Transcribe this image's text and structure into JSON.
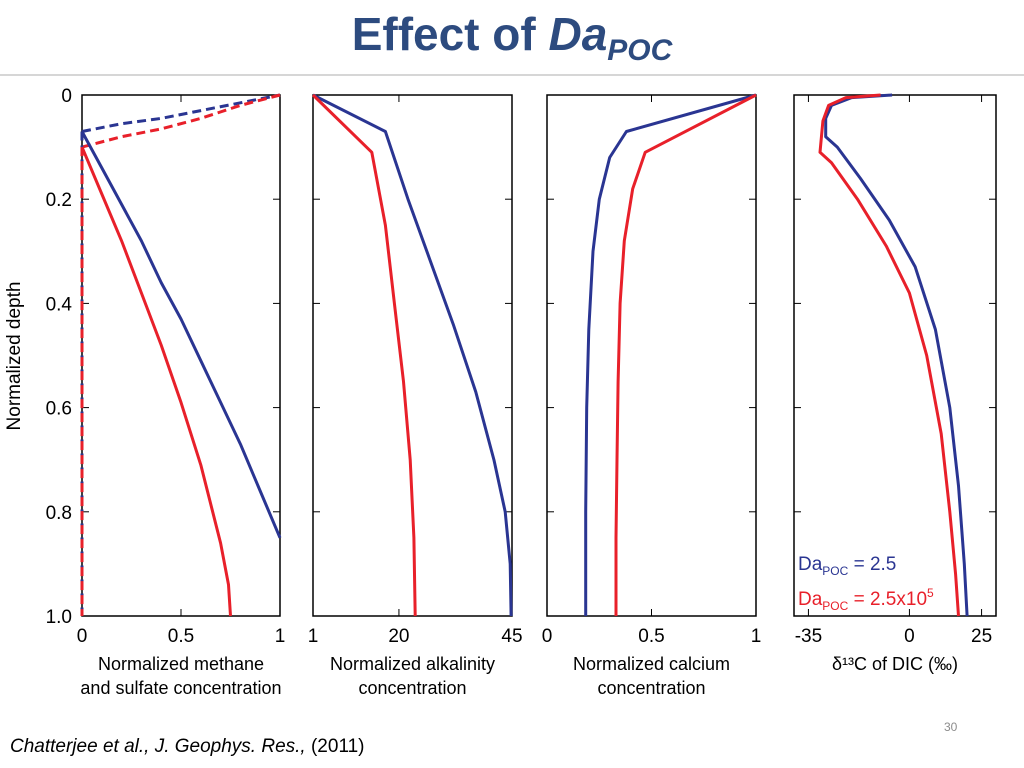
{
  "title": {
    "main": "Effect of ",
    "symbol": "Da",
    "subscript": "POC"
  },
  "colors": {
    "blue": "#2a3592",
    "red": "#e8202a",
    "title": "#2d4b7f"
  },
  "ylabel": "Normalized depth",
  "legend": [
    {
      "prefix": "Da",
      "sub": "POC",
      "text": " = 2.5",
      "sup": "",
      "color": "#2a3592"
    },
    {
      "prefix": "Da",
      "sub": "POC",
      "text": " = 2.5x10",
      "sup": "5",
      "color": "#e8202a"
    }
  ],
  "chart_data": [
    {
      "type": "line",
      "xlabel": [
        "Normalized methane",
        "and sulfate concentration"
      ],
      "ylabel": "Normalized depth",
      "xlim": [
        0,
        1
      ],
      "ylim": [
        1.0,
        0
      ],
      "xticks": [
        0,
        0.5,
        1
      ],
      "xticklabels": [
        "0",
        "0.5",
        "1"
      ],
      "yticks": [
        0,
        0.2,
        0.4,
        0.6,
        0.8,
        1.0
      ],
      "yticklabels": [
        "0",
        "0.2",
        "0.4",
        "0.6",
        "0.8",
        "1.0"
      ],
      "series": [
        {
          "color": "blue",
          "dash": true,
          "points": [
            [
              0.0,
              0.07
            ],
            [
              0.2,
              0.055
            ],
            [
              0.4,
              0.045
            ],
            [
              0.6,
              0.03
            ],
            [
              0.8,
              0.015
            ],
            [
              1.0,
              0.0
            ]
          ]
        },
        {
          "color": "red",
          "dash": true,
          "points": [
            [
              0.0,
              0.1
            ],
            [
              0.2,
              0.08
            ],
            [
              0.4,
              0.065
            ],
            [
              0.6,
              0.045
            ],
            [
              0.8,
              0.02
            ],
            [
              1.0,
              0.0
            ]
          ]
        },
        {
          "color": "blue",
          "dash": true,
          "points": [
            [
              0.0,
              0.07
            ],
            [
              0.0,
              1.0
            ]
          ]
        },
        {
          "color": "red",
          "dash": true,
          "points": [
            [
              0.0,
              0.1
            ],
            [
              0.0,
              1.0
            ]
          ]
        },
        {
          "color": "blue",
          "dash": false,
          "points": [
            [
              0.0,
              0.07
            ],
            [
              0.1,
              0.14
            ],
            [
              0.2,
              0.21
            ],
            [
              0.3,
              0.28
            ],
            [
              0.4,
              0.36
            ],
            [
              0.5,
              0.43
            ],
            [
              0.6,
              0.51
            ],
            [
              0.7,
              0.59
            ],
            [
              0.8,
              0.67
            ],
            [
              0.9,
              0.76
            ],
            [
              1.0,
              0.85
            ]
          ]
        },
        {
          "color": "red",
          "dash": false,
          "points": [
            [
              0.0,
              0.1
            ],
            [
              0.1,
              0.19
            ],
            [
              0.2,
              0.28
            ],
            [
              0.3,
              0.38
            ],
            [
              0.4,
              0.48
            ],
            [
              0.5,
              0.59
            ],
            [
              0.6,
              0.71
            ],
            [
              0.7,
              0.86
            ],
            [
              0.74,
              0.94
            ],
            [
              0.75,
              1.0
            ]
          ]
        }
      ]
    },
    {
      "type": "line",
      "xlabel": [
        "Normalized alkalinity",
        "concentration"
      ],
      "xlim": [
        1,
        45
      ],
      "ylim": [
        1.0,
        0
      ],
      "xticks": [
        1,
        20,
        45
      ],
      "xticklabels": [
        "1",
        "20",
        "45"
      ],
      "series": [
        {
          "color": "blue",
          "dash": false,
          "points": [
            [
              1,
              0.0
            ],
            [
              17,
              0.07
            ],
            [
              22,
              0.2
            ],
            [
              27,
              0.32
            ],
            [
              32,
              0.44
            ],
            [
              37,
              0.57
            ],
            [
              41,
              0.7
            ],
            [
              43.5,
              0.8
            ],
            [
              44.6,
              0.9
            ],
            [
              44.8,
              1.0
            ]
          ]
        },
        {
          "color": "red",
          "dash": false,
          "points": [
            [
              1,
              0.0
            ],
            [
              14,
              0.11
            ],
            [
              17,
              0.25
            ],
            [
              19,
              0.4
            ],
            [
              21,
              0.55
            ],
            [
              22.5,
              0.7
            ],
            [
              23.3,
              0.85
            ],
            [
              23.6,
              1.0
            ]
          ]
        }
      ]
    },
    {
      "type": "line",
      "xlabel": [
        "Normalized calcium",
        "concentration"
      ],
      "xlim": [
        0,
        1
      ],
      "ylim": [
        1.0,
        0
      ],
      "xticks": [
        0,
        0.5,
        1
      ],
      "xticklabels": [
        "0",
        "0.5",
        "1"
      ],
      "series": [
        {
          "color": "blue",
          "dash": false,
          "points": [
            [
              1.0,
              0.0
            ],
            [
              0.38,
              0.07
            ],
            [
              0.3,
              0.12
            ],
            [
              0.25,
              0.2
            ],
            [
              0.22,
              0.3
            ],
            [
              0.2,
              0.45
            ],
            [
              0.19,
              0.6
            ],
            [
              0.185,
              0.8
            ],
            [
              0.185,
              1.0
            ]
          ]
        },
        {
          "color": "red",
          "dash": false,
          "points": [
            [
              1.0,
              0.0
            ],
            [
              0.47,
              0.11
            ],
            [
              0.41,
              0.18
            ],
            [
              0.37,
              0.28
            ],
            [
              0.35,
              0.4
            ],
            [
              0.34,
              0.55
            ],
            [
              0.335,
              0.7
            ],
            [
              0.33,
              0.85
            ],
            [
              0.33,
              1.0
            ]
          ]
        }
      ]
    },
    {
      "type": "line",
      "xlabel": [
        "δ¹³C of DIC (‰)"
      ],
      "xlim": [
        -40,
        30
      ],
      "ylim": [
        1.0,
        0
      ],
      "xticks": [
        -35,
        0,
        25
      ],
      "xticklabels": [
        "-35",
        "0",
        "25"
      ],
      "series": [
        {
          "color": "blue",
          "dash": false,
          "points": [
            [
              -6,
              0.0
            ],
            [
              -20,
              0.005
            ],
            [
              -27,
              0.02
            ],
            [
              -29,
              0.045
            ],
            [
              -29,
              0.08
            ],
            [
              -25,
              0.1
            ],
            [
              -17,
              0.16
            ],
            [
              -7,
              0.24
            ],
            [
              2,
              0.33
            ],
            [
              9,
              0.45
            ],
            [
              14,
              0.6
            ],
            [
              17,
              0.75
            ],
            [
              19,
              0.9
            ],
            [
              20,
              1.0
            ]
          ]
        },
        {
          "color": "red",
          "dash": false,
          "points": [
            [
              -10,
              0.0
            ],
            [
              -22,
              0.005
            ],
            [
              -28,
              0.02
            ],
            [
              -30,
              0.05
            ],
            [
              -31,
              0.11
            ],
            [
              -27,
              0.13
            ],
            [
              -18,
              0.2
            ],
            [
              -8,
              0.29
            ],
            [
              0,
              0.38
            ],
            [
              6,
              0.5
            ],
            [
              11,
              0.65
            ],
            [
              14,
              0.8
            ],
            [
              16,
              0.92
            ],
            [
              17,
              1.0
            ]
          ]
        }
      ]
    }
  ],
  "footer": {
    "authors": "Chatterjee et al., J. Geophys. Res.,",
    "year": " (2011)"
  },
  "page_number": "30"
}
